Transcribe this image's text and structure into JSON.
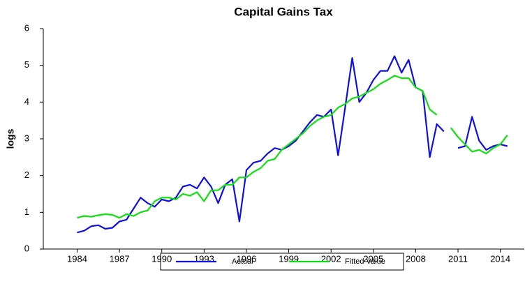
{
  "chart_data": {
    "type": "line",
    "title": "Capital Gains Tax",
    "y_label": "logs",
    "x": [
      1984,
      1984.5,
      1985,
      1985.5,
      1986,
      1986.5,
      1987,
      1987.5,
      1988,
      1988.5,
      1989,
      1989.5,
      1990,
      1990.5,
      1991,
      1991.5,
      1992,
      1992.5,
      1993,
      1993.5,
      1994,
      1994.5,
      1995,
      1995.5,
      1996,
      1996.5,
      1997,
      1997.5,
      1998,
      1998.5,
      1999,
      1999.5,
      2000,
      2000.5,
      2001,
      2001.5,
      2002,
      2002.5,
      2003,
      2003.5,
      2004,
      2004.5,
      2005,
      2005.5,
      2006,
      2006.5,
      2007,
      2007.5,
      2008,
      2008.5,
      2009,
      2009.5,
      2010,
      2010.5,
      2011,
      2011.5,
      2012,
      2012.5,
      2013,
      2013.5,
      2014,
      2014.5
    ],
    "series": [
      {
        "name": "Actual",
        "color": "#1010e0",
        "values": [
          0.45,
          0.5,
          0.62,
          0.65,
          0.55,
          0.58,
          0.75,
          0.8,
          1.1,
          1.4,
          1.25,
          1.15,
          1.35,
          1.3,
          1.4,
          1.7,
          1.75,
          1.65,
          1.95,
          1.7,
          1.25,
          1.75,
          1.9,
          0.75,
          2.15,
          2.35,
          2.4,
          2.6,
          2.75,
          2.7,
          2.8,
          2.95,
          3.2,
          3.45,
          3.65,
          3.6,
          3.8,
          2.55,
          3.85,
          5.2,
          4.0,
          4.25,
          4.6,
          4.85,
          4.85,
          5.25,
          4.8,
          5.15,
          4.4,
          4.3,
          2.5,
          3.4,
          3.2,
          null,
          2.75,
          2.8,
          3.6,
          2.95,
          2.7,
          2.8,
          2.85,
          2.8
        ]
      },
      {
        "name": "Fitted Value",
        "color": "#10e010",
        "values": [
          0.85,
          0.9,
          0.88,
          0.92,
          0.95,
          0.93,
          0.85,
          0.95,
          0.9,
          1.0,
          1.05,
          1.3,
          1.4,
          1.4,
          1.35,
          1.5,
          1.45,
          1.55,
          1.3,
          1.6,
          1.6,
          1.75,
          1.75,
          1.95,
          1.95,
          2.1,
          2.2,
          2.4,
          2.45,
          2.7,
          2.85,
          3.0,
          3.15,
          3.35,
          3.5,
          3.6,
          3.65,
          3.85,
          3.95,
          4.1,
          4.15,
          4.25,
          4.35,
          4.5,
          4.6,
          4.72,
          4.65,
          4.65,
          4.4,
          4.3,
          3.8,
          3.65,
          null,
          3.3,
          3.05,
          2.85,
          2.65,
          2.7,
          2.6,
          2.75,
          2.85,
          3.1
        ]
      }
    ],
    "xlim": [
      1981.6,
      2015.7
    ],
    "xticks": [
      1984,
      1987,
      1990,
      1993,
      1996,
      1999,
      2002,
      2005,
      2008,
      2011,
      2014
    ],
    "ylim": [
      0,
      6
    ],
    "yticks": [
      0,
      1,
      2,
      3,
      4,
      5,
      6
    ],
    "legend": "bottom"
  }
}
